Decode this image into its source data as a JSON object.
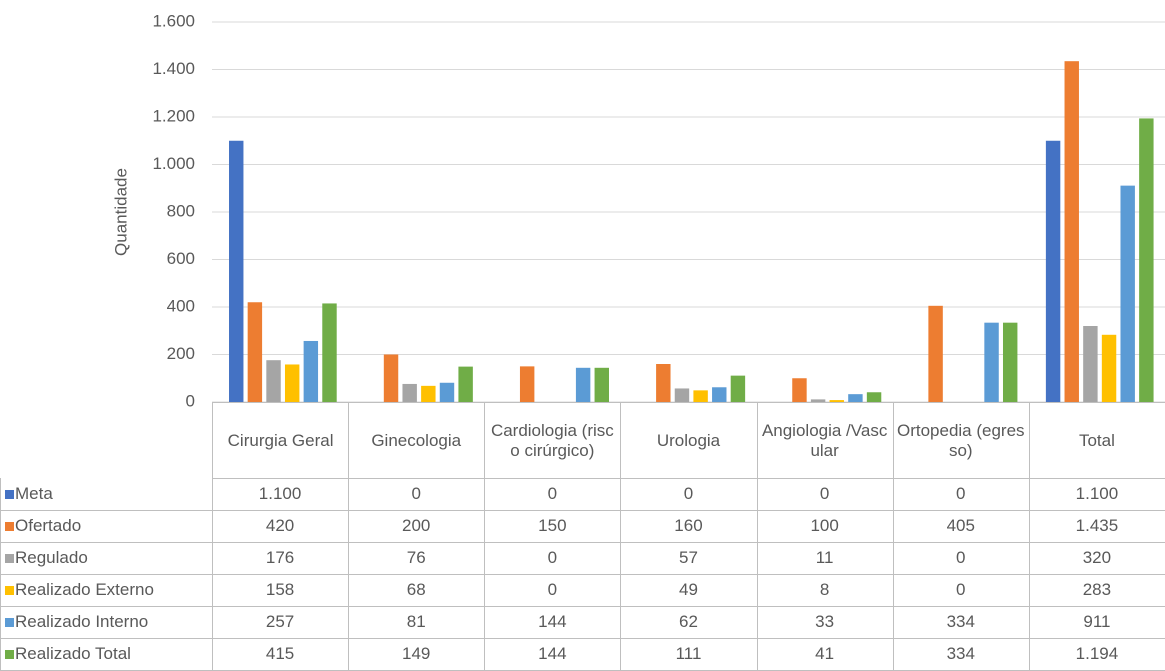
{
  "chart_data": {
    "type": "bar",
    "y_label": "Quantidade",
    "categories": [
      "Cirurgia Geral",
      "Ginecologia",
      "Cardiologia (risco cirúrgico)",
      "Urologia",
      "Angiologia /Vascular",
      "Ortopedia (egresso)",
      "Total"
    ],
    "series": [
      {
        "name": "Meta",
        "color": "#4472c4",
        "values": [
          1100,
          0,
          0,
          0,
          0,
          0,
          1100
        ],
        "value_labels": [
          "1.100",
          "0",
          "0",
          "0",
          "0",
          "0",
          "1.100"
        ]
      },
      {
        "name": "Ofertado",
        "color": "#ed7d31",
        "values": [
          420,
          200,
          150,
          160,
          100,
          405,
          1435
        ],
        "value_labels": [
          "420",
          "200",
          "150",
          "160",
          "100",
          "405",
          "1.435"
        ]
      },
      {
        "name": "Regulado",
        "color": "#a5a5a5",
        "values": [
          176,
          76,
          0,
          57,
          11,
          0,
          320
        ],
        "value_labels": [
          "176",
          "76",
          "0",
          "57",
          "11",
          "0",
          "320"
        ]
      },
      {
        "name": "Realizado Externo",
        "color": "#ffc000",
        "values": [
          158,
          68,
          0,
          49,
          8,
          0,
          283
        ],
        "value_labels": [
          "158",
          "68",
          "0",
          "49",
          "8",
          "0",
          "283"
        ]
      },
      {
        "name": "Realizado Interno",
        "color": "#5b9bd5",
        "values": [
          257,
          81,
          144,
          62,
          33,
          334,
          911
        ],
        "value_labels": [
          "257",
          "81",
          "144",
          "62",
          "33",
          "334",
          "911"
        ]
      },
      {
        "name": "Realizado Total",
        "color": "#70ad47",
        "values": [
          415,
          149,
          144,
          111,
          41,
          334,
          1194
        ],
        "value_labels": [
          "415",
          "149",
          "144",
          "111",
          "41",
          "334",
          "1.194"
        ]
      }
    ],
    "ylim": [
      0,
      1600
    ],
    "yticks": [
      0,
      200,
      400,
      600,
      800,
      {
        "value": 1000,
        "label": "1.000"
      },
      {
        "value": 1200,
        "label": "1.200"
      },
      {
        "value": 1400,
        "label": "1.400"
      },
      {
        "value": 1600,
        "label": "1.600"
      }
    ],
    "grid": true
  }
}
